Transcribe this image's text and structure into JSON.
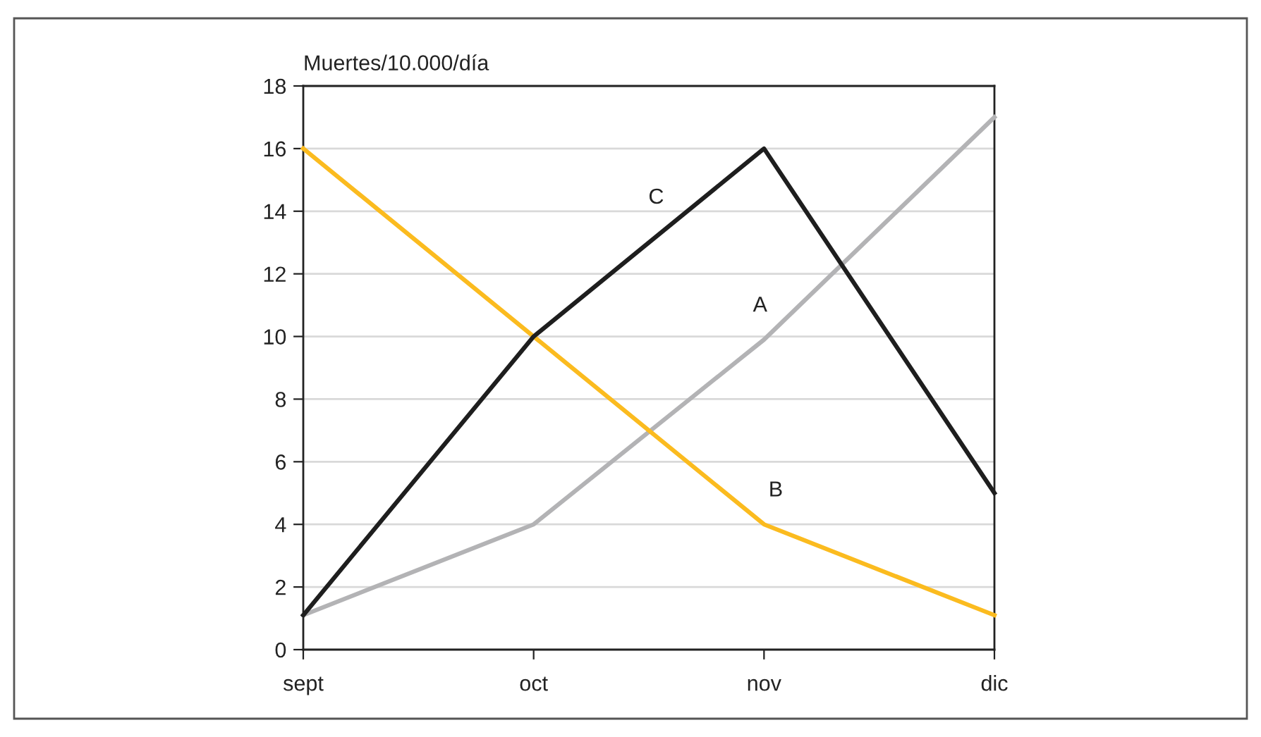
{
  "chart_data": {
    "type": "line",
    "ylabel": "Muertes/10.000/día",
    "categories": [
      "sept",
      "oct",
      "nov",
      "dic"
    ],
    "series": [
      {
        "name": "A",
        "color": "#b3b3b5",
        "values": [
          1.1,
          4,
          9.9,
          17
        ]
      },
      {
        "name": "B",
        "color": "#fbbb1f",
        "values": [
          16,
          10,
          4,
          1.1
        ]
      },
      {
        "name": "C",
        "color": "#1e1e1e",
        "values": [
          1.1,
          10,
          16,
          5
        ]
      }
    ],
    "ylim": [
      0,
      18
    ],
    "yticks": [
      0,
      2,
      4,
      6,
      8,
      10,
      12,
      14,
      16,
      18
    ],
    "grid": "y",
    "legend": false,
    "marker": "none",
    "line_style": "solid"
  }
}
